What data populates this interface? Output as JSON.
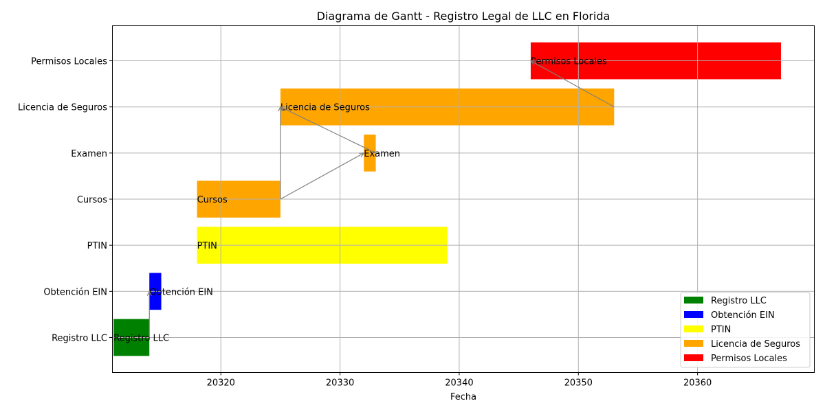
{
  "chart_data": {
    "type": "gantt",
    "title": "Diagrama de Gantt - Registro Legal de LLC en Florida",
    "xlabel": "Fecha",
    "ylabel": "",
    "xlim": [
      20310.9,
      20369.8
    ],
    "ylim": [
      -0.76,
      6.76
    ],
    "xticks": [
      20320,
      20330,
      20340,
      20350,
      20360
    ],
    "grid": true,
    "legend_position": "lower-right",
    "tasks": [
      {
        "name": "Registro LLC",
        "start": 20311,
        "end": 20314,
        "color": "#008000"
      },
      {
        "name": "Obtención EIN",
        "start": 20314,
        "end": 20315,
        "color": "#0000ff"
      },
      {
        "name": "PTIN",
        "start": 20318,
        "end": 20339,
        "color": "#ffff00"
      },
      {
        "name": "Cursos",
        "start": 20318,
        "end": 20325,
        "color": "#ffa500"
      },
      {
        "name": "Examen",
        "start": 20332,
        "end": 20333,
        "color": "#ffa500"
      },
      {
        "name": "Licencia de Seguros",
        "start": 20325,
        "end": 20353,
        "color": "#ffa500"
      },
      {
        "name": "Permisos Locales",
        "start": 20346,
        "end": 20367,
        "color": "#ff0000"
      }
    ],
    "dependencies": [
      {
        "from": "Registro LLC",
        "to": "Obtención EIN"
      },
      {
        "from": "Cursos",
        "to": "Examen"
      },
      {
        "from": "Cursos",
        "to": "Licencia de Seguros"
      },
      {
        "from": "Examen",
        "to": "Licencia de Seguros"
      },
      {
        "from": "Licencia de Seguros",
        "to": "Permisos Locales"
      }
    ],
    "legend": [
      {
        "label": "Registro LLC",
        "color": "#008000"
      },
      {
        "label": "Obtención EIN",
        "color": "#0000ff"
      },
      {
        "label": "PTIN",
        "color": "#ffff00"
      },
      {
        "label": "Licencia de Seguros",
        "color": "#ffa500"
      },
      {
        "label": "Permisos Locales",
        "color": "#ff0000"
      }
    ]
  }
}
